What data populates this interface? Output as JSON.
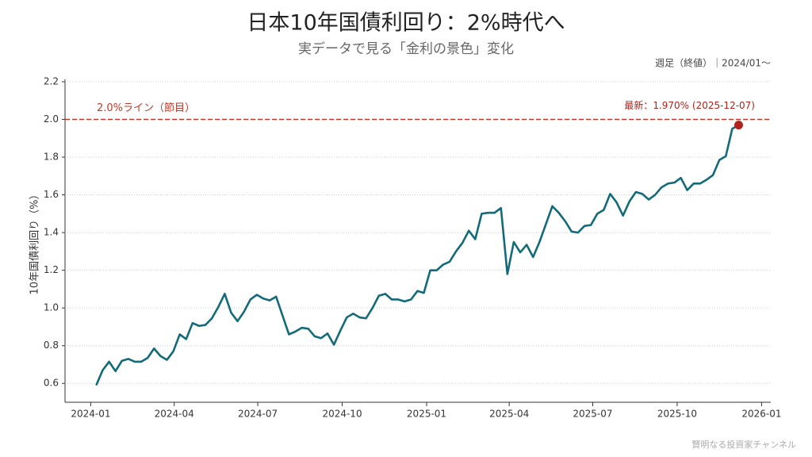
{
  "chart_data": {
    "type": "line",
    "title": "日本10年国債利回り：2%時代へ",
    "subtitle": "実データで見る「金利の景色」変化",
    "note": "週足（終値）｜2024/01〜",
    "y_label": "10年国債利回り（%）",
    "footer": "賢明なる投資家チャンネル",
    "x": [
      "2024-01-07",
      "2024-01-14",
      "2024-01-21",
      "2024-01-28",
      "2024-02-04",
      "2024-02-11",
      "2024-02-18",
      "2024-02-25",
      "2024-03-03",
      "2024-03-10",
      "2024-03-17",
      "2024-03-24",
      "2024-03-31",
      "2024-04-07",
      "2024-04-14",
      "2024-04-21",
      "2024-04-28",
      "2024-05-05",
      "2024-05-12",
      "2024-05-19",
      "2024-05-26",
      "2024-06-02",
      "2024-06-09",
      "2024-06-16",
      "2024-06-23",
      "2024-06-30",
      "2024-07-07",
      "2024-07-14",
      "2024-07-21",
      "2024-07-28",
      "2024-08-04",
      "2024-08-11",
      "2024-08-18",
      "2024-08-25",
      "2024-09-01",
      "2024-09-08",
      "2024-09-15",
      "2024-09-22",
      "2024-09-29",
      "2024-10-06",
      "2024-10-13",
      "2024-10-20",
      "2024-10-27",
      "2024-11-03",
      "2024-11-10",
      "2024-11-17",
      "2024-11-24",
      "2024-12-01",
      "2024-12-08",
      "2024-12-15",
      "2024-12-22",
      "2024-12-29",
      "2025-01-05",
      "2025-01-12",
      "2025-01-19",
      "2025-01-26",
      "2025-02-02",
      "2025-02-09",
      "2025-02-16",
      "2025-02-23",
      "2025-03-02",
      "2025-03-09",
      "2025-03-16",
      "2025-03-23",
      "2025-03-30",
      "2025-04-06",
      "2025-04-13",
      "2025-04-20",
      "2025-04-27",
      "2025-05-04",
      "2025-05-11",
      "2025-05-18",
      "2025-05-25",
      "2025-06-01",
      "2025-06-08",
      "2025-06-15",
      "2025-06-22",
      "2025-06-29",
      "2025-07-06",
      "2025-07-13",
      "2025-07-20",
      "2025-07-27",
      "2025-08-03",
      "2025-08-10",
      "2025-08-17",
      "2025-08-24",
      "2025-08-31",
      "2025-09-07",
      "2025-09-14",
      "2025-09-21",
      "2025-09-28",
      "2025-10-05",
      "2025-10-12",
      "2025-10-19",
      "2025-10-26",
      "2025-11-02",
      "2025-11-09",
      "2025-11-16",
      "2025-11-23",
      "2025-11-30",
      "2025-12-07"
    ],
    "series": [
      {
        "color": "#136a78",
        "values": [
          0.59,
          0.67,
          0.715,
          0.665,
          0.72,
          0.73,
          0.715,
          0.715,
          0.735,
          0.785,
          0.745,
          0.725,
          0.77,
          0.86,
          0.835,
          0.92,
          0.905,
          0.91,
          0.945,
          1.005,
          1.075,
          0.975,
          0.93,
          0.98,
          1.045,
          1.07,
          1.05,
          1.04,
          1.06,
          0.96,
          0.86,
          0.875,
          0.895,
          0.89,
          0.85,
          0.84,
          0.865,
          0.805,
          0.88,
          0.95,
          0.97,
          0.95,
          0.945,
          1.0,
          1.065,
          1.075,
          1.045,
          1.045,
          1.035,
          1.045,
          1.09,
          1.08,
          1.2,
          1.2,
          1.23,
          1.245,
          1.3,
          1.345,
          1.41,
          1.365,
          1.5,
          1.505,
          1.505,
          1.53,
          1.18,
          1.35,
          1.295,
          1.335,
          1.27,
          1.35,
          1.445,
          1.54,
          1.505,
          1.46,
          1.405,
          1.4,
          1.435,
          1.44,
          1.5,
          1.52,
          1.605,
          1.56,
          1.49,
          1.565,
          1.615,
          1.605,
          1.575,
          1.6,
          1.64,
          1.66,
          1.665,
          1.69,
          1.625,
          1.66,
          1.66,
          1.68,
          1.705,
          1.785,
          1.805,
          1.95,
          1.97
        ]
      }
    ],
    "xlim": [
      "2023-12-04",
      "2026-01-11"
    ],
    "xticks": [
      {
        "value": "2024-01-01",
        "label": "2024-01"
      },
      {
        "value": "2024-04-01",
        "label": "2024-04"
      },
      {
        "value": "2024-07-01",
        "label": "2024-07"
      },
      {
        "value": "2024-10-01",
        "label": "2024-10"
      },
      {
        "value": "2025-01-01",
        "label": "2025-01"
      },
      {
        "value": "2025-04-01",
        "label": "2025-04"
      },
      {
        "value": "2025-07-01",
        "label": "2025-07"
      },
      {
        "value": "2025-10-01",
        "label": "2025-10"
      },
      {
        "value": "2026-01-01",
        "label": "2026-01"
      }
    ],
    "ylim": [
      0.5,
      2.2
    ],
    "yticks": [
      0.6,
      0.8,
      {
        "value": 1,
        "label": "1.0"
      },
      1.2,
      1.4,
      1.6,
      1.8,
      {
        "value": 2,
        "label": "2.0"
      },
      2.2
    ],
    "grid": true,
    "reference_line": {
      "value": 2,
      "label": "2.0%ライン（節目）",
      "color": "#c0392b"
    },
    "latest_label": "最新：1.970% (2025-12-07)",
    "latest_color": "#b0231b"
  }
}
